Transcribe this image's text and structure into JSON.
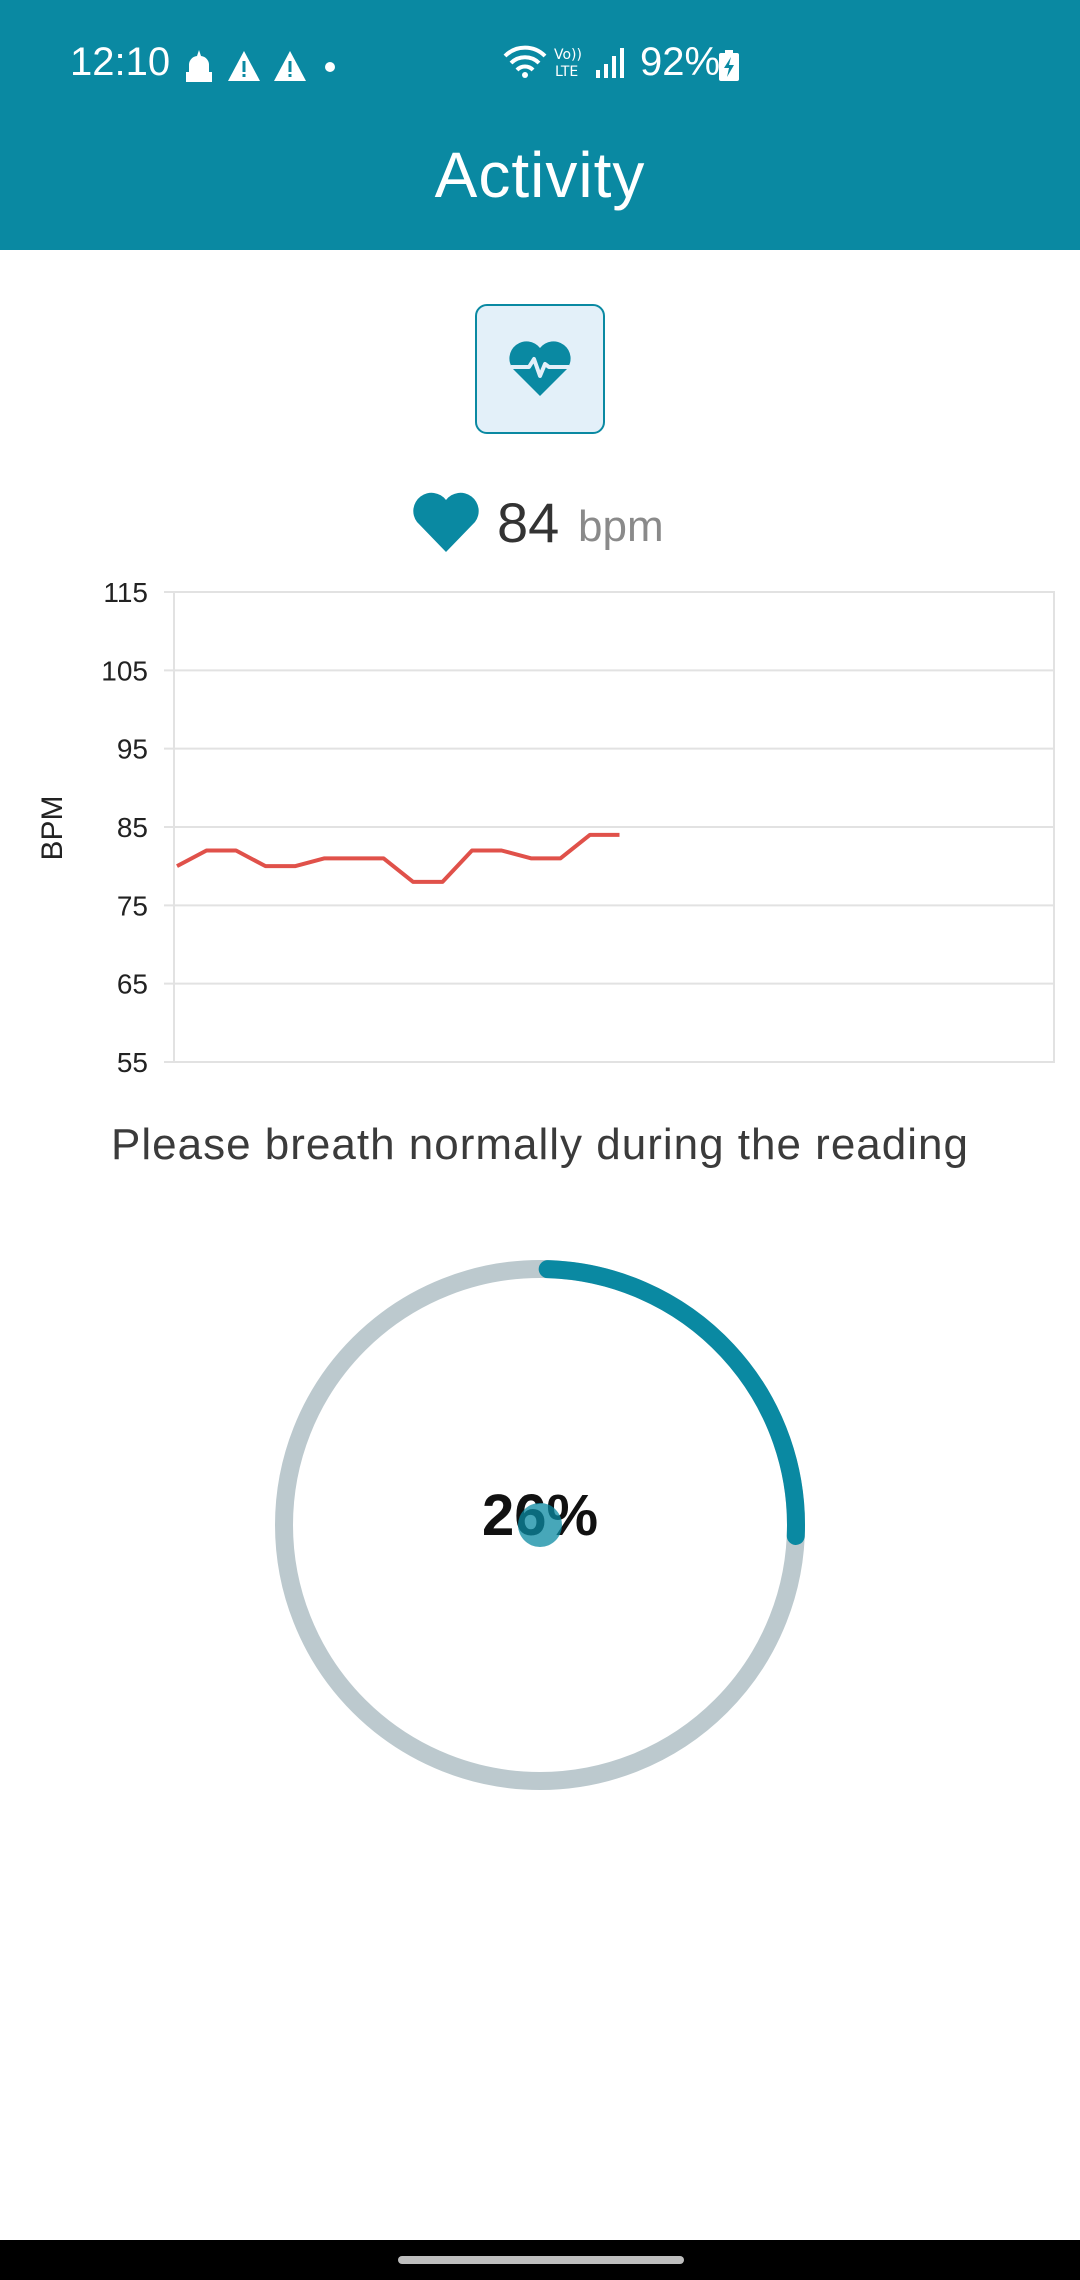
{
  "status_bar": {
    "time": "12:10",
    "battery": "92%",
    "icons": [
      "mosque-icon",
      "warning-icon",
      "warning-icon",
      "dot-icon",
      "wifi-icon",
      "volte-icon",
      "signal-icon",
      "battery-charging-icon"
    ]
  },
  "app_bar": {
    "title": "Activity"
  },
  "colors": {
    "primary": "#0A89A2",
    "chart_line": "#E0514A",
    "track": "#BCC9CE"
  },
  "reading": {
    "value": "84",
    "unit": "bpm"
  },
  "chart_data": {
    "type": "line",
    "ylabel": "BPM",
    "ylim": [
      55,
      115
    ],
    "yticks": [
      "115",
      "105",
      "95",
      "85",
      "75",
      "65",
      "55"
    ],
    "grid": true,
    "series": [
      {
        "values": [
          80,
          82,
          82,
          80,
          80,
          81,
          81,
          81,
          78,
          78,
          82,
          82,
          81,
          81,
          84,
          84
        ]
      }
    ]
  },
  "instruction": "Please breath normally during the reading",
  "progress": {
    "label": "26%",
    "fraction": 0.26
  }
}
